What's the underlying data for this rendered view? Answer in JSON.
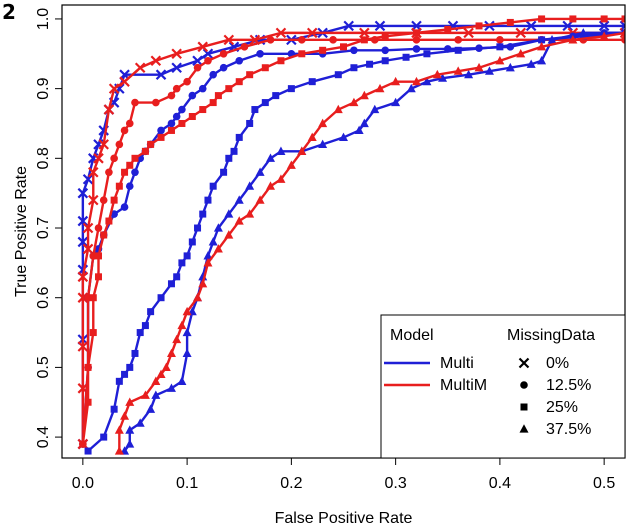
{
  "panel_label": "2",
  "chart_data": {
    "type": "line",
    "title": "",
    "xlabel": "False Positive Rate",
    "ylabel": "True Positive Rate",
    "xlim": [
      -0.02,
      0.52
    ],
    "ylim": [
      0.37,
      1.02
    ],
    "xticks": [
      0.0,
      0.1,
      0.2,
      0.3,
      0.4,
      0.5
    ],
    "xtick_labels": [
      "0.0",
      "0.1",
      "0.2",
      "0.3",
      "0.4",
      "0.5"
    ],
    "yticks": [
      0.4,
      0.5,
      0.6,
      0.7,
      0.8,
      0.9,
      1.0
    ],
    "ytick_labels": [
      "0.4",
      "0.5",
      "0.6",
      "0.7",
      "0.8",
      "0.9",
      "1.0"
    ],
    "grid": false,
    "legend_position": "bottom-right",
    "legend": {
      "model_title": "Model",
      "missing_title": "MissingData",
      "models": [
        {
          "label": "Multi",
          "color": "#1f1fd6"
        },
        {
          "label": "MultiM",
          "color": "#e81e1e"
        }
      ],
      "missing": [
        {
          "label": "0%",
          "marker": "cross"
        },
        {
          "label": "12.5%",
          "marker": "circle"
        },
        {
          "label": "25%",
          "marker": "square"
        },
        {
          "label": "37.5%",
          "marker": "triangle"
        }
      ]
    },
    "series": [
      {
        "model": "Multi",
        "missing": "0%",
        "marker": "cross",
        "color": "#1f1fd6",
        "points": [
          [
            0,
            0.39
          ],
          [
            0,
            0.54
          ],
          [
            0,
            0.64
          ],
          [
            0,
            0.68
          ],
          [
            0,
            0.71
          ],
          [
            0,
            0.75
          ],
          [
            0.005,
            0.77
          ],
          [
            0.01,
            0.8
          ],
          [
            0.015,
            0.82
          ],
          [
            0.02,
            0.84
          ],
          [
            0.025,
            0.87
          ],
          [
            0.03,
            0.88
          ],
          [
            0.035,
            0.9
          ],
          [
            0.04,
            0.92
          ],
          [
            0.075,
            0.92
          ],
          [
            0.09,
            0.93
          ],
          [
            0.11,
            0.94
          ],
          [
            0.12,
            0.95
          ],
          [
            0.145,
            0.96
          ],
          [
            0.17,
            0.97
          ],
          [
            0.2,
            0.97
          ],
          [
            0.23,
            0.98
          ],
          [
            0.255,
            0.99
          ],
          [
            0.285,
            0.99
          ],
          [
            0.32,
            0.99
          ],
          [
            0.355,
            0.99
          ],
          [
            0.39,
            0.99
          ],
          [
            0.43,
            0.99
          ],
          [
            0.465,
            0.99
          ],
          [
            0.5,
            0.99
          ],
          [
            0.52,
            0.99
          ]
        ]
      },
      {
        "model": "MultiM",
        "missing": "0%",
        "marker": "cross",
        "color": "#e81e1e",
        "points": [
          [
            0,
            0.39
          ],
          [
            0,
            0.47
          ],
          [
            0,
            0.53
          ],
          [
            0,
            0.6
          ],
          [
            0,
            0.63
          ],
          [
            0.005,
            0.67
          ],
          [
            0.005,
            0.7
          ],
          [
            0.01,
            0.74
          ],
          [
            0.01,
            0.78
          ],
          [
            0.015,
            0.8
          ],
          [
            0.02,
            0.82
          ],
          [
            0.025,
            0.87
          ],
          [
            0.03,
            0.9
          ],
          [
            0.04,
            0.91
          ],
          [
            0.055,
            0.93
          ],
          [
            0.07,
            0.94
          ],
          [
            0.09,
            0.95
          ],
          [
            0.115,
            0.96
          ],
          [
            0.14,
            0.97
          ],
          [
            0.165,
            0.97
          ],
          [
            0.19,
            0.98
          ],
          [
            0.22,
            0.98
          ],
          [
            0.27,
            0.98
          ],
          [
            0.32,
            0.98
          ],
          [
            0.37,
            0.98
          ],
          [
            0.42,
            0.98
          ],
          [
            0.47,
            0.98
          ],
          [
            0.52,
            0.98
          ]
        ]
      },
      {
        "model": "Multi",
        "missing": "12.5%",
        "marker": "circle",
        "color": "#1f1fd6",
        "points": [
          [
            0,
            0.39
          ],
          [
            0.005,
            0.5
          ],
          [
            0.005,
            0.6
          ],
          [
            0.01,
            0.66
          ],
          [
            0.015,
            0.67
          ],
          [
            0.02,
            0.69
          ],
          [
            0.03,
            0.72
          ],
          [
            0.04,
            0.73
          ],
          [
            0.045,
            0.76
          ],
          [
            0.05,
            0.78
          ],
          [
            0.055,
            0.8
          ],
          [
            0.06,
            0.81
          ],
          [
            0.065,
            0.82
          ],
          [
            0.075,
            0.84
          ],
          [
            0.085,
            0.85
          ],
          [
            0.09,
            0.86
          ],
          [
            0.095,
            0.87
          ],
          [
            0.105,
            0.89
          ],
          [
            0.115,
            0.9
          ],
          [
            0.125,
            0.92
          ],
          [
            0.135,
            0.93
          ],
          [
            0.15,
            0.94
          ],
          [
            0.17,
            0.95
          ],
          [
            0.2,
            0.95
          ],
          [
            0.23,
            0.95
          ],
          [
            0.26,
            0.955
          ],
          [
            0.29,
            0.955
          ],
          [
            0.32,
            0.957
          ],
          [
            0.35,
            0.957
          ],
          [
            0.38,
            0.958
          ],
          [
            0.41,
            0.96
          ],
          [
            0.44,
            0.97
          ],
          [
            0.47,
            0.975
          ],
          [
            0.5,
            0.98
          ],
          [
            0.52,
            0.98
          ]
        ]
      },
      {
        "model": "MultiM",
        "missing": "12.5%",
        "marker": "circle",
        "color": "#e81e1e",
        "points": [
          [
            0,
            0.39
          ],
          [
            0.005,
            0.5
          ],
          [
            0.005,
            0.6
          ],
          [
            0.01,
            0.66
          ],
          [
            0.015,
            0.7
          ],
          [
            0.02,
            0.74
          ],
          [
            0.025,
            0.78
          ],
          [
            0.03,
            0.8
          ],
          [
            0.035,
            0.82
          ],
          [
            0.04,
            0.84
          ],
          [
            0.045,
            0.85
          ],
          [
            0.05,
            0.88
          ],
          [
            0.07,
            0.88
          ],
          [
            0.085,
            0.89
          ],
          [
            0.09,
            0.9
          ],
          [
            0.1,
            0.91
          ],
          [
            0.11,
            0.93
          ],
          [
            0.12,
            0.94
          ],
          [
            0.135,
            0.95
          ],
          [
            0.155,
            0.96
          ],
          [
            0.18,
            0.97
          ],
          [
            0.21,
            0.97
          ],
          [
            0.24,
            0.97
          ],
          [
            0.28,
            0.97
          ],
          [
            0.32,
            0.97
          ],
          [
            0.36,
            0.97
          ],
          [
            0.4,
            0.97
          ],
          [
            0.44,
            0.97
          ],
          [
            0.48,
            0.97
          ],
          [
            0.52,
            0.97
          ]
        ]
      },
      {
        "model": "Multi",
        "missing": "25%",
        "marker": "square",
        "color": "#1f1fd6",
        "points": [
          [
            0.005,
            0.38
          ],
          [
            0.02,
            0.4
          ],
          [
            0.03,
            0.44
          ],
          [
            0.035,
            0.48
          ],
          [
            0.04,
            0.49
          ],
          [
            0.045,
            0.5
          ],
          [
            0.05,
            0.52
          ],
          [
            0.055,
            0.55
          ],
          [
            0.06,
            0.56
          ],
          [
            0.065,
            0.58
          ],
          [
            0.075,
            0.6
          ],
          [
            0.085,
            0.62
          ],
          [
            0.09,
            0.63
          ],
          [
            0.095,
            0.65
          ],
          [
            0.1,
            0.66
          ],
          [
            0.105,
            0.68
          ],
          [
            0.11,
            0.7
          ],
          [
            0.115,
            0.72
          ],
          [
            0.12,
            0.74
          ],
          [
            0.125,
            0.76
          ],
          [
            0.135,
            0.78
          ],
          [
            0.14,
            0.8
          ],
          [
            0.145,
            0.81
          ],
          [
            0.15,
            0.83
          ],
          [
            0.16,
            0.85
          ],
          [
            0.165,
            0.87
          ],
          [
            0.175,
            0.88
          ],
          [
            0.185,
            0.89
          ],
          [
            0.2,
            0.9
          ],
          [
            0.22,
            0.91
          ],
          [
            0.245,
            0.92
          ],
          [
            0.26,
            0.93
          ],
          [
            0.275,
            0.935
          ],
          [
            0.29,
            0.94
          ],
          [
            0.31,
            0.945
          ],
          [
            0.33,
            0.95
          ],
          [
            0.36,
            0.955
          ],
          [
            0.4,
            0.96
          ],
          [
            0.44,
            0.97
          ],
          [
            0.48,
            0.975
          ],
          [
            0.52,
            0.98
          ]
        ]
      },
      {
        "model": "MultiM",
        "missing": "25%",
        "marker": "square",
        "color": "#e81e1e",
        "points": [
          [
            0,
            0.39
          ],
          [
            0.005,
            0.45
          ],
          [
            0.005,
            0.5
          ],
          [
            0.01,
            0.55
          ],
          [
            0.01,
            0.6
          ],
          [
            0.015,
            0.63
          ],
          [
            0.015,
            0.66
          ],
          [
            0.02,
            0.69
          ],
          [
            0.025,
            0.71
          ],
          [
            0.03,
            0.74
          ],
          [
            0.035,
            0.76
          ],
          [
            0.04,
            0.78
          ],
          [
            0.045,
            0.79
          ],
          [
            0.05,
            0.8
          ],
          [
            0.06,
            0.81
          ],
          [
            0.065,
            0.82
          ],
          [
            0.075,
            0.83
          ],
          [
            0.085,
            0.84
          ],
          [
            0.095,
            0.85
          ],
          [
            0.105,
            0.86
          ],
          [
            0.115,
            0.87
          ],
          [
            0.125,
            0.88
          ],
          [
            0.13,
            0.89
          ],
          [
            0.14,
            0.9
          ],
          [
            0.15,
            0.91
          ],
          [
            0.16,
            0.92
          ],
          [
            0.175,
            0.93
          ],
          [
            0.19,
            0.94
          ],
          [
            0.21,
            0.95
          ],
          [
            0.23,
            0.955
          ],
          [
            0.25,
            0.96
          ],
          [
            0.27,
            0.97
          ],
          [
            0.29,
            0.975
          ],
          [
            0.32,
            0.98
          ],
          [
            0.35,
            0.985
          ],
          [
            0.38,
            0.99
          ],
          [
            0.41,
            0.995
          ],
          [
            0.44,
            1.0
          ],
          [
            0.47,
            1.0
          ],
          [
            0.5,
            1.0
          ],
          [
            0.52,
            1.0
          ]
        ]
      },
      {
        "model": "Multi",
        "missing": "37.5%",
        "marker": "triangle",
        "color": "#1f1fd6",
        "points": [
          [
            0.04,
            0.38
          ],
          [
            0.045,
            0.39
          ],
          [
            0.045,
            0.41
          ],
          [
            0.055,
            0.42
          ],
          [
            0.065,
            0.44
          ],
          [
            0.07,
            0.46
          ],
          [
            0.085,
            0.47
          ],
          [
            0.095,
            0.48
          ],
          [
            0.1,
            0.52
          ],
          [
            0.1,
            0.55
          ],
          [
            0.105,
            0.58
          ],
          [
            0.11,
            0.6
          ],
          [
            0.115,
            0.63
          ],
          [
            0.12,
            0.66
          ],
          [
            0.125,
            0.68
          ],
          [
            0.13,
            0.7
          ],
          [
            0.14,
            0.72
          ],
          [
            0.15,
            0.74
          ],
          [
            0.16,
            0.76
          ],
          [
            0.17,
            0.78
          ],
          [
            0.18,
            0.8
          ],
          [
            0.19,
            0.81
          ],
          [
            0.21,
            0.81
          ],
          [
            0.23,
            0.82
          ],
          [
            0.25,
            0.83
          ],
          [
            0.265,
            0.84
          ],
          [
            0.27,
            0.85
          ],
          [
            0.28,
            0.87
          ],
          [
            0.3,
            0.88
          ],
          [
            0.315,
            0.9
          ],
          [
            0.33,
            0.91
          ],
          [
            0.345,
            0.915
          ],
          [
            0.37,
            0.92
          ],
          [
            0.39,
            0.925
          ],
          [
            0.41,
            0.93
          ],
          [
            0.43,
            0.935
          ],
          [
            0.44,
            0.94
          ],
          [
            0.45,
            0.97
          ],
          [
            0.48,
            0.98
          ],
          [
            0.52,
            0.98
          ]
        ]
      },
      {
        "model": "MultiM",
        "missing": "37.5%",
        "marker": "triangle",
        "color": "#e81e1e",
        "points": [
          [
            0.035,
            0.38
          ],
          [
            0.035,
            0.41
          ],
          [
            0.04,
            0.43
          ],
          [
            0.045,
            0.45
          ],
          [
            0.06,
            0.46
          ],
          [
            0.07,
            0.48
          ],
          [
            0.075,
            0.49
          ],
          [
            0.08,
            0.5
          ],
          [
            0.085,
            0.52
          ],
          [
            0.09,
            0.54
          ],
          [
            0.095,
            0.56
          ],
          [
            0.1,
            0.58
          ],
          [
            0.11,
            0.6
          ],
          [
            0.115,
            0.62
          ],
          [
            0.12,
            0.65
          ],
          [
            0.13,
            0.67
          ],
          [
            0.14,
            0.69
          ],
          [
            0.15,
            0.71
          ],
          [
            0.16,
            0.72
          ],
          [
            0.17,
            0.74
          ],
          [
            0.18,
            0.76
          ],
          [
            0.19,
            0.77
          ],
          [
            0.2,
            0.79
          ],
          [
            0.21,
            0.81
          ],
          [
            0.22,
            0.83
          ],
          [
            0.23,
            0.85
          ],
          [
            0.245,
            0.87
          ],
          [
            0.26,
            0.88
          ],
          [
            0.27,
            0.89
          ],
          [
            0.285,
            0.9
          ],
          [
            0.3,
            0.91
          ],
          [
            0.32,
            0.91
          ],
          [
            0.34,
            0.92
          ],
          [
            0.36,
            0.925
          ],
          [
            0.38,
            0.93
          ],
          [
            0.4,
            0.94
          ],
          [
            0.42,
            0.95
          ],
          [
            0.44,
            0.96
          ],
          [
            0.47,
            0.97
          ],
          [
            0.5,
            0.975
          ],
          [
            0.52,
            0.98
          ]
        ]
      }
    ]
  }
}
